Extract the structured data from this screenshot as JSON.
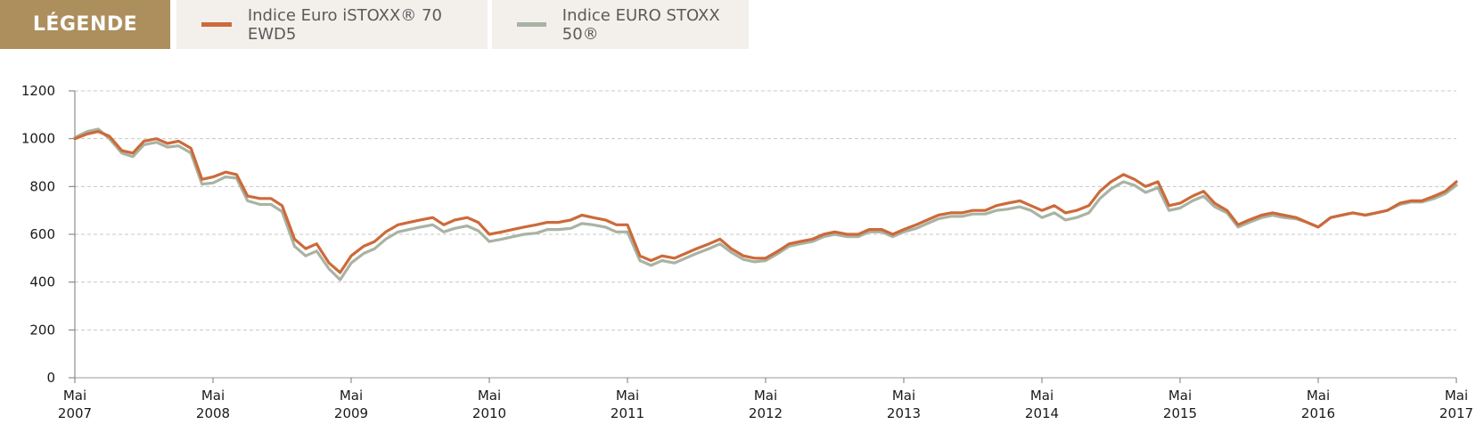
{
  "legend": {
    "title": "LÉGENDE",
    "entries": [
      {
        "label": "Indice Euro iSTOXX® 70 EWD5",
        "color": "#cc6a3a"
      },
      {
        "label": "Indice EURO STOXX 50®",
        "color": "#a9b3a3"
      }
    ]
  },
  "chart_data": {
    "type": "line",
    "ylim": [
      0,
      1200
    ],
    "yticks": [
      0,
      200,
      400,
      600,
      800,
      1000,
      1200
    ],
    "xlim": [
      2007.33,
      2017.33
    ],
    "xticks": [
      {
        "x": 2007.33,
        "label": "Mai 2007"
      },
      {
        "x": 2008.33,
        "label": "Mai 2008"
      },
      {
        "x": 2009.33,
        "label": "Mai 2009"
      },
      {
        "x": 2010.33,
        "label": "Mai 2010"
      },
      {
        "x": 2011.33,
        "label": "Mai 2011"
      },
      {
        "x": 2012.33,
        "label": "Mai 2012"
      },
      {
        "x": 2013.33,
        "label": "Mai 2013"
      },
      {
        "x": 2014.33,
        "label": "Mai 2014"
      },
      {
        "x": 2015.33,
        "label": "Mai 2015"
      },
      {
        "x": 2016.33,
        "label": "Mai 2016"
      },
      {
        "x": 2017.33,
        "label": "Mai 2017"
      }
    ],
    "grid": true,
    "x": [
      2007.33,
      2007.42,
      2007.5,
      2007.58,
      2007.67,
      2007.75,
      2007.83,
      2007.92,
      2008.0,
      2008.08,
      2008.17,
      2008.25,
      2008.33,
      2008.42,
      2008.5,
      2008.58,
      2008.67,
      2008.75,
      2008.83,
      2008.92,
      2009.0,
      2009.08,
      2009.17,
      2009.25,
      2009.33,
      2009.42,
      2009.5,
      2009.58,
      2009.67,
      2009.75,
      2009.83,
      2009.92,
      2010.0,
      2010.08,
      2010.17,
      2010.25,
      2010.33,
      2010.42,
      2010.5,
      2010.58,
      2010.67,
      2010.75,
      2010.83,
      2010.92,
      2011.0,
      2011.08,
      2011.17,
      2011.25,
      2011.33,
      2011.42,
      2011.5,
      2011.58,
      2011.67,
      2011.75,
      2011.83,
      2011.92,
      2012.0,
      2012.08,
      2012.17,
      2012.25,
      2012.33,
      2012.42,
      2012.5,
      2012.58,
      2012.67,
      2012.75,
      2012.83,
      2012.92,
      2013.0,
      2013.08,
      2013.17,
      2013.25,
      2013.33,
      2013.42,
      2013.5,
      2013.58,
      2013.67,
      2013.75,
      2013.83,
      2013.92,
      2014.0,
      2014.08,
      2014.17,
      2014.25,
      2014.33,
      2014.42,
      2014.5,
      2014.58,
      2014.67,
      2014.75,
      2014.83,
      2014.92,
      2015.0,
      2015.08,
      2015.17,
      2015.25,
      2015.33,
      2015.42,
      2015.5,
      2015.58,
      2015.67,
      2015.75,
      2015.83,
      2015.92,
      2016.0,
      2016.08,
      2016.17,
      2016.25,
      2016.33,
      2016.42,
      2016.5,
      2016.58,
      2016.67,
      2016.75,
      2016.83,
      2016.92,
      2017.0,
      2017.08,
      2017.17,
      2017.25,
      2017.33
    ],
    "series": [
      {
        "name": "Indice Euro iSTOXX® 70 EWD5",
        "color": "#cc6a3a",
        "values": [
          1000,
          1020,
          1030,
          1010,
          950,
          940,
          990,
          1000,
          980,
          990,
          960,
          830,
          840,
          860,
          850,
          760,
          750,
          750,
          720,
          580,
          540,
          560,
          480,
          440,
          510,
          550,
          570,
          610,
          640,
          650,
          660,
          670,
          640,
          660,
          670,
          650,
          600,
          610,
          620,
          630,
          640,
          650,
          650,
          660,
          680,
          670,
          660,
          640,
          640,
          510,
          490,
          510,
          500,
          520,
          540,
          560,
          580,
          540,
          510,
          500,
          500,
          530,
          560,
          570,
          580,
          600,
          610,
          600,
          600,
          620,
          620,
          600,
          620,
          640,
          660,
          680,
          690,
          690,
          700,
          700,
          720,
          730,
          740,
          720,
          700,
          720,
          690,
          700,
          720,
          780,
          820,
          850,
          830,
          800,
          820,
          720,
          730,
          760,
          780,
          730,
          700,
          640,
          660,
          680,
          690,
          680,
          670,
          650,
          630,
          670,
          680,
          690,
          680,
          690,
          700,
          730,
          740,
          740,
          760,
          780,
          820
        ]
      },
      {
        "name": "Indice EURO STOXX 50®",
        "color": "#a9b3a3",
        "values": [
          1005,
          1030,
          1040,
          1000,
          940,
          925,
          975,
          985,
          965,
          970,
          940,
          810,
          815,
          840,
          835,
          740,
          725,
          725,
          695,
          550,
          510,
          530,
          455,
          410,
          480,
          520,
          540,
          580,
          610,
          620,
          630,
          640,
          610,
          625,
          635,
          615,
          570,
          580,
          590,
          600,
          605,
          620,
          620,
          625,
          645,
          640,
          630,
          610,
          610,
          490,
          470,
          490,
          480,
          500,
          520,
          540,
          560,
          525,
          495,
          485,
          490,
          520,
          550,
          560,
          570,
          590,
          600,
          590,
          590,
          610,
          610,
          590,
          610,
          625,
          645,
          665,
          675,
          675,
          685,
          685,
          700,
          705,
          715,
          700,
          670,
          690,
          660,
          670,
          690,
          750,
          790,
          820,
          805,
          775,
          795,
          700,
          710,
          740,
          760,
          715,
          690,
          630,
          650,
          670,
          680,
          670,
          665,
          650,
          630,
          670,
          680,
          690,
          680,
          690,
          700,
          725,
          735,
          735,
          750,
          770,
          805
        ]
      }
    ]
  }
}
